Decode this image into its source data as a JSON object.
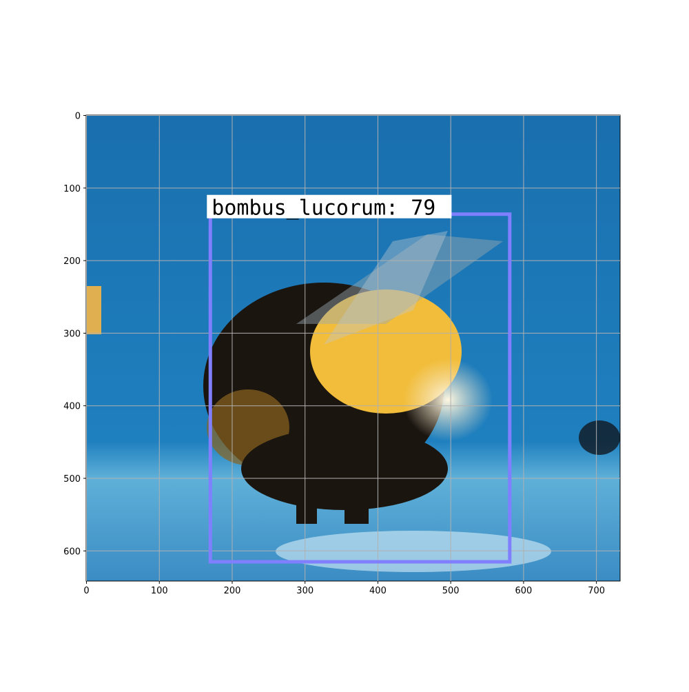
{
  "chart_data": {
    "type": "image",
    "xlim": [
      -0.5,
      732.5
    ],
    "ylim": [
      641.5,
      -0.5
    ],
    "xticks": [
      0,
      100,
      200,
      300,
      400,
      500,
      600,
      700
    ],
    "yticks": [
      0,
      100,
      200,
      300,
      400,
      500,
      600
    ],
    "grid": true,
    "boxes": [
      {
        "label": "bombus_lucorum: 79",
        "x0": 170,
        "y0": 136,
        "x1": 581,
        "y1": 615,
        "color": "#7f7fff"
      }
    ]
  }
}
